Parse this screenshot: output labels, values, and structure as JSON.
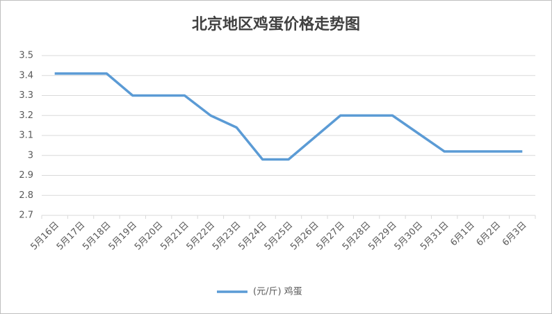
{
  "chart_data": {
    "type": "line",
    "title": "北京地区鸡蛋价格走势图",
    "categories": [
      "5月16日",
      "5月17日",
      "5月18日",
      "5月19日",
      "5月20日",
      "5月21日",
      "5月22日",
      "5月23日",
      "5月24日",
      "5月25日",
      "5月26日",
      "5月27日",
      "5月28日",
      "5月29日",
      "5月30日",
      "5月31日",
      "6月1日",
      "6月2日",
      "6月3日"
    ],
    "series": [
      {
        "name": "(元/斤) 鸡蛋",
        "color": "#5b9bd5",
        "values": [
          3.41,
          3.41,
          3.41,
          3.3,
          3.3,
          3.3,
          3.2,
          3.14,
          2.98,
          2.98,
          3.09,
          3.2,
          3.2,
          3.2,
          3.11,
          3.02,
          3.02,
          3.02,
          3.02
        ]
      }
    ],
    "ylim": [
      2.7,
      3.5
    ],
    "yticks": [
      3.5,
      3.4,
      3.3,
      3.2,
      3.1,
      3,
      2.9,
      2.8,
      2.7
    ],
    "grid": true,
    "legend": "bottom"
  }
}
